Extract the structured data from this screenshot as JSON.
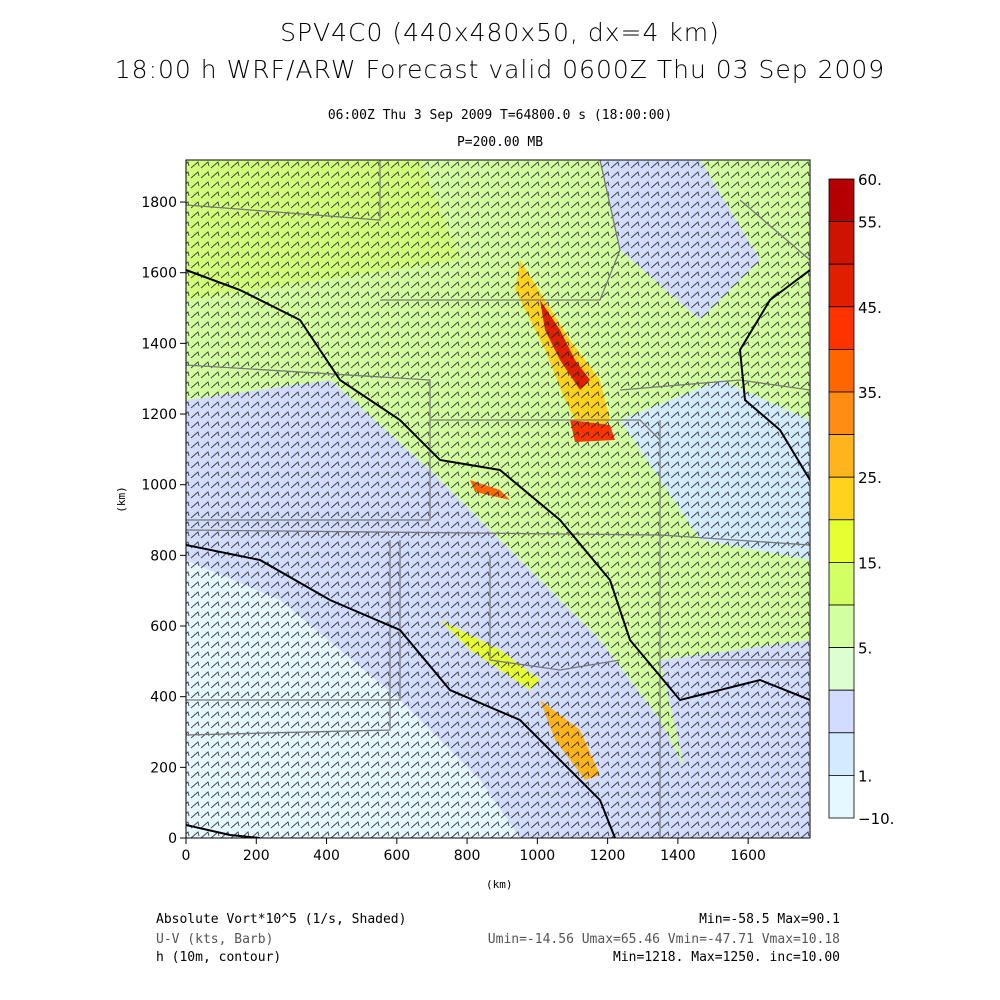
{
  "header": {
    "title_line1": "SPV4C0 (440x480x50, dx=4 km)",
    "title_line2": "18:00 h WRF/ARW Forecast valid 0600Z Thu 03 Sep 2009",
    "valid_time": "06:00Z Thu  3 Sep 2009     T=64800.0 s (18:00:00)",
    "level": "P=200.00 MB"
  },
  "axes": {
    "xlabel": "(km)",
    "ylabel": "(km)",
    "xticks": [
      "0",
      "200",
      "400",
      "600",
      "800",
      "1000",
      "1200",
      "1400",
      "1600"
    ],
    "yticks": [
      "0",
      "200",
      "400",
      "600",
      "800",
      "1000",
      "1200",
      "1400",
      "1600",
      "1800"
    ],
    "xvalues": [
      0,
      200,
      400,
      600,
      800,
      1000,
      1200,
      1400,
      1600
    ],
    "yvalues": [
      0,
      200,
      400,
      600,
      800,
      1000,
      1200,
      1400,
      1600,
      1800
    ],
    "xlim": [
      0,
      1776
    ],
    "ylim": [
      0,
      1919
    ]
  },
  "colorbar": {
    "labels": [
      {
        "text": "60.",
        "bin": 0
      },
      {
        "text": "55.",
        "bin": 1
      },
      {
        "text": "45.",
        "bin": 3
      },
      {
        "text": "35.",
        "bin": 5
      },
      {
        "text": "25.",
        "bin": 7
      },
      {
        "text": "15.",
        "bin": 9
      },
      {
        "text": "5.",
        "bin": 11
      },
      {
        "text": "1.",
        "bin": 14
      },
      {
        "text": "−10.",
        "bin": 15
      }
    ],
    "colors": [
      "#b40000",
      "#cc1400",
      "#e01e00",
      "#ff3300",
      "#ff6600",
      "#ff8c14",
      "#ffb41e",
      "#ffd21e",
      "#e6ff32",
      "#d2ff64",
      "#d2ffa0",
      "#dcffd2",
      "#d2dcff",
      "#d2ebff",
      "#e6f8ff"
    ]
  },
  "footer": {
    "field1_name": "Absolute Vort*10^5 (1/s, Shaded)",
    "field1_stats": "Min=-58.5 Max=90.1",
    "field2_name": "U-V (kts, Barb)",
    "field2_stats": "Umin=-14.56 Umax=65.46 Vmin=-47.71 Vmax=10.18",
    "field3_name": "h (10m, contour)",
    "field3_stats": "Min=1218. Max=1250. inc=10.00"
  }
}
